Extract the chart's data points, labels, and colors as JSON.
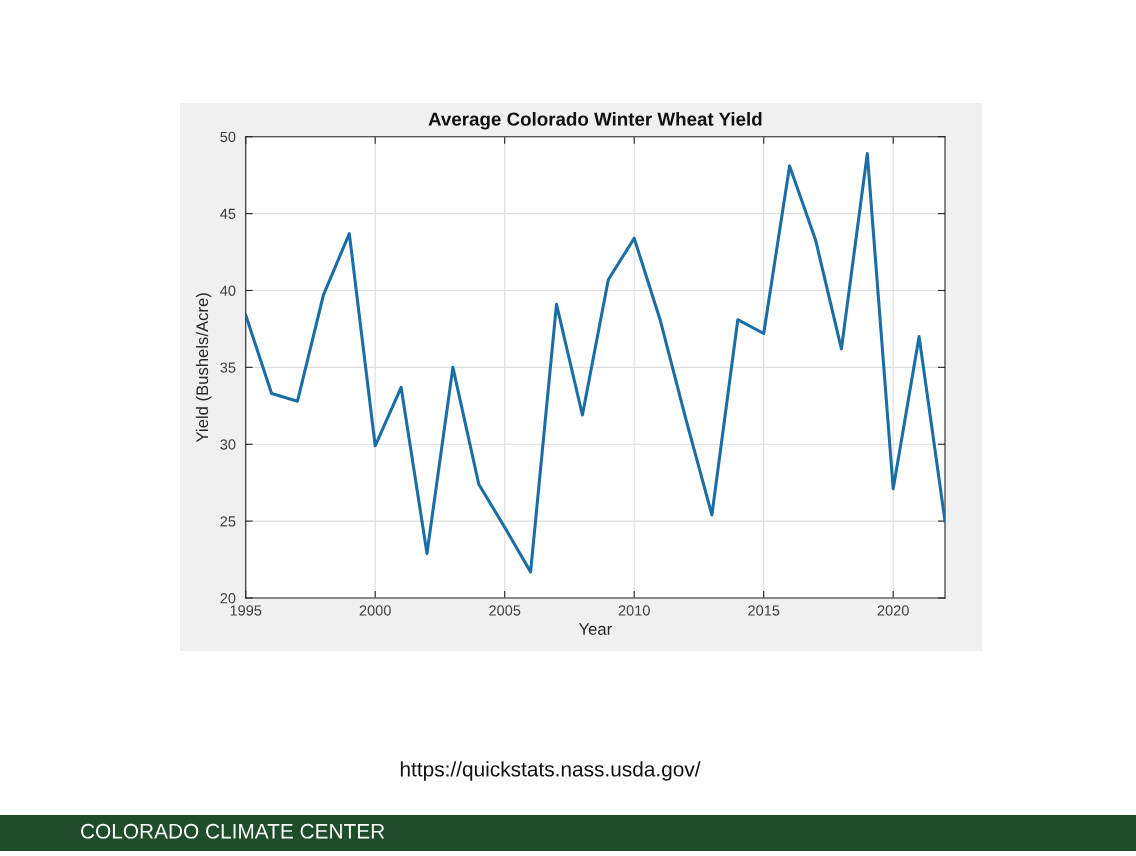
{
  "chart_data": {
    "type": "line",
    "title": "Average Colorado Winter Wheat Yield",
    "xlabel": "Year",
    "ylabel": "Yield (Bushels/Acre)",
    "x": [
      1995,
      1996,
      1997,
      1998,
      1999,
      2000,
      2001,
      2002,
      2003,
      2004,
      2005,
      2006,
      2007,
      2008,
      2009,
      2010,
      2011,
      2012,
      2013,
      2014,
      2015,
      2016,
      2017,
      2018,
      2019,
      2020,
      2021,
      2022
    ],
    "series": [
      {
        "color": "#1b6ea5",
        "values": [
          38.4,
          33.3,
          32.8,
          39.7,
          43.7,
          29.9,
          33.7,
          22.9,
          35.0,
          27.4,
          24.6,
          21.7,
          39.1,
          31.9,
          40.7,
          43.4,
          38.1,
          31.6,
          25.4,
          38.1,
          37.2,
          48.1,
          43.3,
          36.2,
          48.9,
          27.1,
          37.0,
          25.0
        ]
      }
    ],
    "xlim": [
      1995,
      2022
    ],
    "ylim": [
      20,
      50
    ],
    "xticks": [
      1995,
      2000,
      2005,
      2010,
      2015,
      2020
    ],
    "yticks": [
      20,
      25,
      30,
      35,
      40,
      45,
      50
    ],
    "grid": true,
    "marker": "none",
    "line_style": "solid",
    "annotations": [
      "https://quickstats.nass.usda.gov/",
      "COLORADO CLIMATE CENTER"
    ]
  }
}
